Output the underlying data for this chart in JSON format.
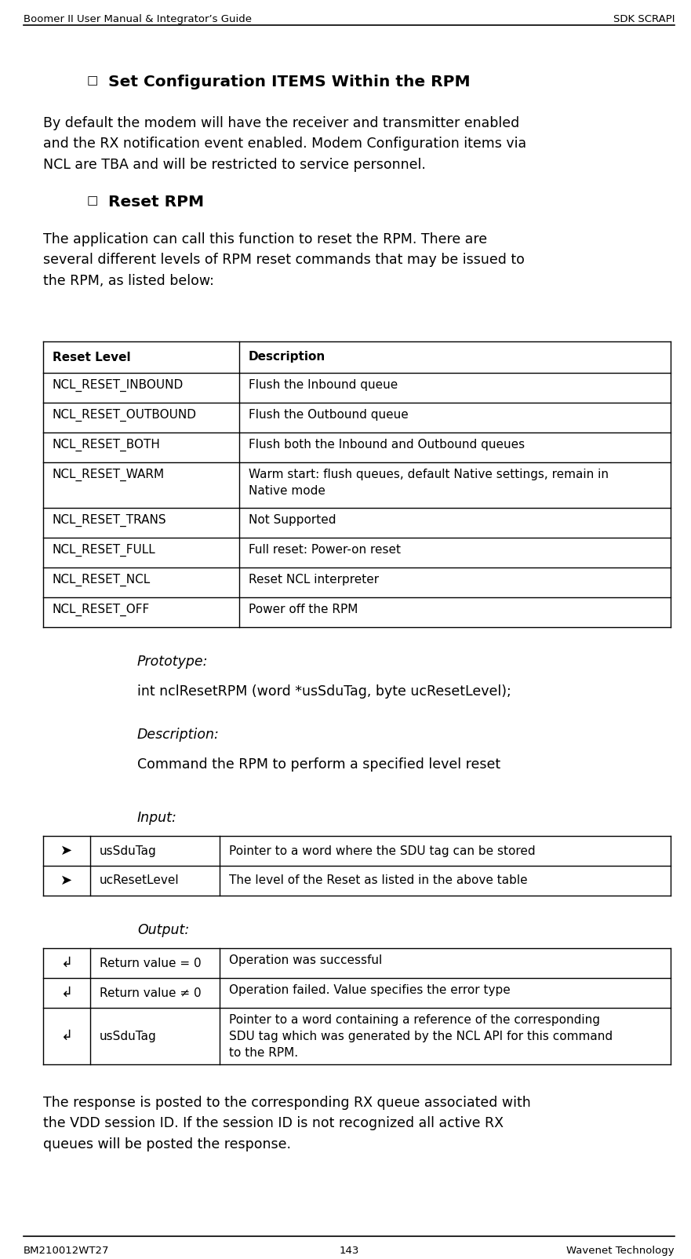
{
  "header_left": "Boomer II User Manual & Integrator’s Guide",
  "header_right": "SDK SCRAPI",
  "footer_left": "BM210012WT27",
  "footer_center": "143",
  "footer_right": "Wavenet Technology",
  "section1_title": "Set Configuration ITEMS Within the RPM",
  "section1_body": "By default the modem will have the receiver and transmitter enabled\nand the RX notification event enabled. Modem Configuration items via\nNCL are TBA and will be restricted to service personnel.",
  "section2_title": "Reset RPM",
  "section2_body": "The application can call this function to reset the RPM. There are\nseveral different levels of RPM reset commands that may be issued to\nthe RPM, as listed below:",
  "reset_table_headers": [
    "Reset Level",
    "Description"
  ],
  "reset_table_rows": [
    [
      "NCL_RESET_INBOUND",
      "Flush the Inbound queue"
    ],
    [
      "NCL_RESET_OUTBOUND",
      "Flush the Outbound queue"
    ],
    [
      "NCL_RESET_BOTH",
      "Flush both the Inbound and Outbound queues"
    ],
    [
      "NCL_RESET_WARM",
      "Warm start: flush queues, default Native settings, remain in\nNative mode"
    ],
    [
      "NCL_RESET_TRANS",
      "Not Supported"
    ],
    [
      "NCL_RESET_FULL",
      "Full reset: Power-on reset"
    ],
    [
      "NCL_RESET_NCL",
      "Reset NCL interpreter"
    ],
    [
      "NCL_RESET_OFF",
      "Power off the RPM"
    ]
  ],
  "prototype_label": "Prototype:",
  "prototype_code": "int nclResetRPM (word *usSduTag, byte ucResetLevel);",
  "description_label": "Description:",
  "description_body": "Command the RPM to perform a specified level reset",
  "input_label": "Input:",
  "input_table_rows": [
    [
      "➤",
      "usSduTag",
      "Pointer to a word where the SDU tag can be stored"
    ],
    [
      "➤",
      "ucResetLevel",
      "The level of the Reset as listed in the above table"
    ]
  ],
  "output_label": "Output:",
  "output_table_rows": [
    [
      "↲",
      "Return value = 0",
      "Operation was successful"
    ],
    [
      "↲",
      "Return value ≠ 0",
      "Operation failed. Value specifies the error type"
    ],
    [
      "↲",
      "usSduTag",
      "Pointer to a word containing a reference of the corresponding\nSDU tag which was generated by the NCL API for this command\nto the RPM."
    ]
  ],
  "final_body": "The response is posted to the corresponding RX queue associated with\nthe VDD session ID. If the session ID is not recognized all active RX\nqueues will be posted the response.",
  "bg_color": "#ffffff",
  "text_color": "#000000",
  "header_font_size": 9.5,
  "body_font_size": 12.5,
  "section_title_font_size": 14.5,
  "table_font_size": 11.0,
  "proto_font_size": 12.5
}
